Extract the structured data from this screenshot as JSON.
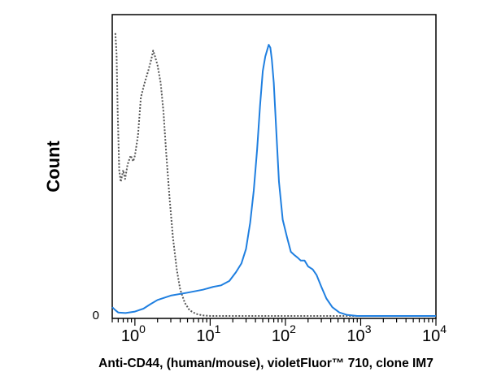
{
  "chart_data": {
    "type": "area",
    "xlabel": "Anti-CD44, (human/mouse), violetFluor™ 710, clone IM7",
    "ylabel": "Count",
    "xscale": "log",
    "xlim": [
      0.5,
      10000
    ],
    "ylim": [
      0,
      100
    ],
    "x_ticks": [
      {
        "base": "10",
        "exp": "0",
        "value": 1
      },
      {
        "base": "10",
        "exp": "1",
        "value": 10
      },
      {
        "base": "10",
        "exp": "2",
        "value": 100
      },
      {
        "base": "10",
        "exp": "3",
        "value": 1000
      },
      {
        "base": "10",
        "exp": "4",
        "value": 10000
      }
    ],
    "y_ticks": [
      {
        "label": "0",
        "value": 0
      }
    ],
    "grid": false,
    "legend": "none",
    "series": [
      {
        "style": "dotted",
        "color": "#555555",
        "points": [
          [
            0.55,
            97
          ],
          [
            0.57,
            90
          ],
          [
            0.59,
            70
          ],
          [
            0.62,
            50
          ],
          [
            0.65,
            46
          ],
          [
            0.7,
            50
          ],
          [
            0.74,
            47
          ],
          [
            0.8,
            52
          ],
          [
            0.88,
            55
          ],
          [
            0.95,
            53
          ],
          [
            1.0,
            55
          ],
          [
            1.1,
            62
          ],
          [
            1.2,
            75
          ],
          [
            1.35,
            80
          ],
          [
            1.5,
            84
          ],
          [
            1.65,
            88
          ],
          [
            1.75,
            91
          ],
          [
            1.85,
            89
          ],
          [
            2.0,
            86
          ],
          [
            2.2,
            80
          ],
          [
            2.4,
            70
          ],
          [
            2.6,
            56
          ],
          [
            2.9,
            40
          ],
          [
            3.2,
            27
          ],
          [
            3.6,
            16
          ],
          [
            4.0,
            9
          ],
          [
            4.6,
            4.5
          ],
          [
            5.3,
            2
          ],
          [
            6.5,
            0.7
          ],
          [
            8,
            0.2
          ],
          [
            10,
            0
          ],
          [
            10000,
            0
          ]
        ]
      },
      {
        "style": "solid",
        "color": "#1f7fe0",
        "points": [
          [
            0.5,
            3
          ],
          [
            0.55,
            2
          ],
          [
            0.6,
            1.2
          ],
          [
            0.75,
            1.0
          ],
          [
            1.0,
            1.5
          ],
          [
            1.3,
            2.5
          ],
          [
            1.6,
            4
          ],
          [
            2.0,
            5.5
          ],
          [
            3.0,
            7
          ],
          [
            5.0,
            8
          ],
          [
            8.0,
            9
          ],
          [
            11,
            10
          ],
          [
            14,
            10.5
          ],
          [
            18,
            12
          ],
          [
            22,
            15
          ],
          [
            26,
            18
          ],
          [
            30,
            23
          ],
          [
            34,
            32
          ],
          [
            38,
            43
          ],
          [
            42,
            57
          ],
          [
            46,
            72
          ],
          [
            50,
            84
          ],
          [
            54,
            89
          ],
          [
            57,
            91
          ],
          [
            60,
            93
          ],
          [
            63,
            92
          ],
          [
            66,
            88
          ],
          [
            70,
            80
          ],
          [
            75,
            65
          ],
          [
            82,
            46
          ],
          [
            92,
            33
          ],
          [
            105,
            27
          ],
          [
            118,
            22
          ],
          [
            130,
            21
          ],
          [
            145,
            20
          ],
          [
            160,
            19
          ],
          [
            180,
            19
          ],
          [
            200,
            17
          ],
          [
            230,
            16
          ],
          [
            260,
            14
          ],
          [
            300,
            10
          ],
          [
            350,
            6
          ],
          [
            420,
            3
          ],
          [
            520,
            1.2
          ],
          [
            650,
            0.4
          ],
          [
            900,
            0
          ],
          [
            10000,
            0
          ]
        ]
      }
    ]
  }
}
